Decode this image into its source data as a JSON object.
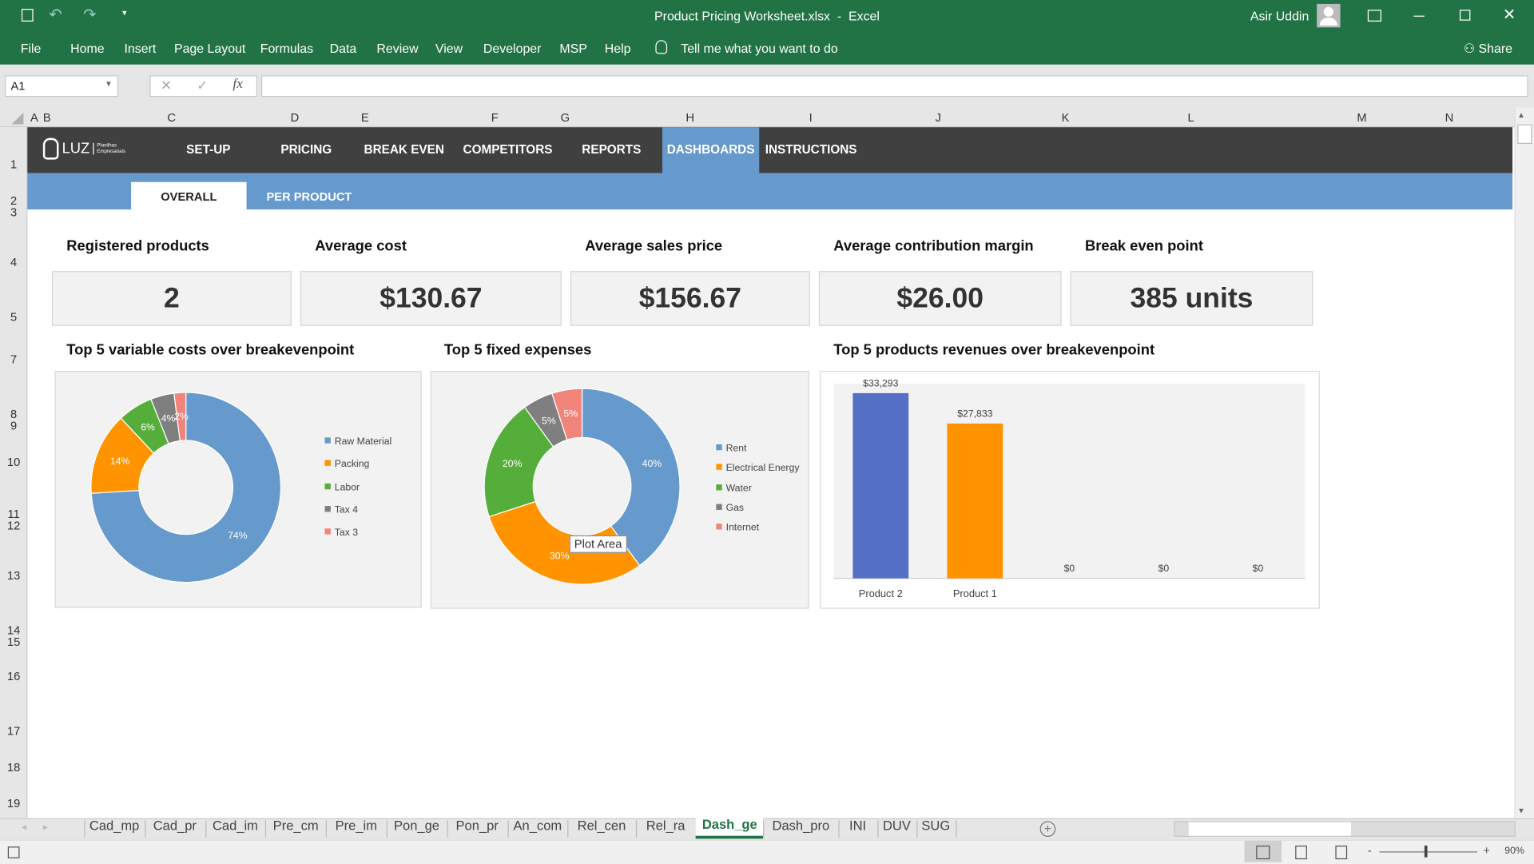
{
  "window": {
    "title": "Product Pricing Worksheet.xlsx  -  Excel",
    "user": "Asir Uddin",
    "share": "Share"
  },
  "ribbon": {
    "tabs": [
      "File",
      "Home",
      "Insert",
      "Page Layout",
      "Formulas",
      "Data",
      "Review",
      "View",
      "Developer",
      "MSP",
      "Help"
    ],
    "tell_me": "Tell me what you want to do"
  },
  "formula_bar": {
    "name_box": "A1",
    "formula": ""
  },
  "columns": [
    "A",
    "B",
    "C",
    "D",
    "E",
    "F",
    "G",
    "H",
    "I",
    "J",
    "K",
    "L",
    "M",
    "N"
  ],
  "rows": [
    "1",
    "2",
    "3",
    "4",
    "5",
    "7",
    "8",
    "9",
    "10",
    "11",
    "12",
    "13",
    "14",
    "15",
    "16",
    "17",
    "18",
    "19"
  ],
  "dashboard": {
    "logo": "LUZ",
    "logo_sub": "Planilhas Empresariais",
    "nav": [
      "SET-UP",
      "PRICING",
      "BREAK EVEN",
      "COMPETITORS",
      "REPORTS",
      "DASHBOARDS",
      "INSTRUCTIONS"
    ],
    "active_nav": "DASHBOARDS",
    "subtabs": [
      "OVERALL",
      "PER PRODUCT"
    ],
    "kpis": [
      {
        "label": "Registered products",
        "value": "2"
      },
      {
        "label": "Average cost",
        "value": "$130.67"
      },
      {
        "label": "Average sales price",
        "value": "$156.67"
      },
      {
        "label": "Average contribution margin",
        "value": "$26.00"
      },
      {
        "label": "Break even point",
        "value": "385 units"
      }
    ],
    "tooltip": "Plot Area"
  },
  "colors": {
    "excel_green": "#217346",
    "nav_dark": "#404040",
    "accent_blue": "#6699cc"
  },
  "chart_data": [
    {
      "type": "pie",
      "donut": true,
      "title": "Top 5 variable costs over breakevenpoint",
      "categories": [
        "Raw Material",
        "Packing",
        "Labor",
        "Tax 4",
        "Tax 3"
      ],
      "values": [
        74,
        14,
        6,
        4,
        2
      ],
      "labels": [
        "74%",
        "14%",
        "6%",
        "4%",
        "2%"
      ],
      "colors": [
        "#6699cc",
        "#ff9300",
        "#55ae3a",
        "#7f7f7f",
        "#f2847a"
      ],
      "legend": "right"
    },
    {
      "type": "pie",
      "donut": true,
      "title": "Top 5 fixed expenses",
      "categories": [
        "Rent",
        "Electrical Energy",
        "Water",
        "Gas",
        "Internet"
      ],
      "values": [
        40,
        30,
        20,
        5,
        5
      ],
      "labels": [
        "40%",
        "30%",
        "20%",
        "5%",
        "5%"
      ],
      "colors": [
        "#6699cc",
        "#ff9300",
        "#55ae3a",
        "#7f7f7f",
        "#f2847a"
      ],
      "legend": "right"
    },
    {
      "type": "bar",
      "title": "Top 5 products revenues over breakevenpoint",
      "categories": [
        "Product 2",
        "Product 1",
        "",
        "",
        ""
      ],
      "values": [
        33293,
        27833,
        0,
        0,
        0
      ],
      "labels": [
        "$33,293",
        "$27,833",
        "$0",
        "$0",
        "$0"
      ],
      "colors": [
        "#5470c6",
        "#ff9300",
        "#5470c6",
        "#5470c6",
        "#5470c6"
      ],
      "ylim": [
        0,
        35000
      ],
      "grid": false
    }
  ],
  "sheets": [
    "Cad_mp",
    "Cad_pr",
    "Cad_im",
    "Pre_cm",
    "Pre_im",
    "Pon_ge",
    "Pon_pr",
    "An_com",
    "Rel_cen",
    "Rel_ra",
    "Dash_ge",
    "Dash_pro",
    "INI",
    "DUV",
    "SUG"
  ],
  "active_sheet": "Dash_ge",
  "status": {
    "zoom": "90%"
  }
}
